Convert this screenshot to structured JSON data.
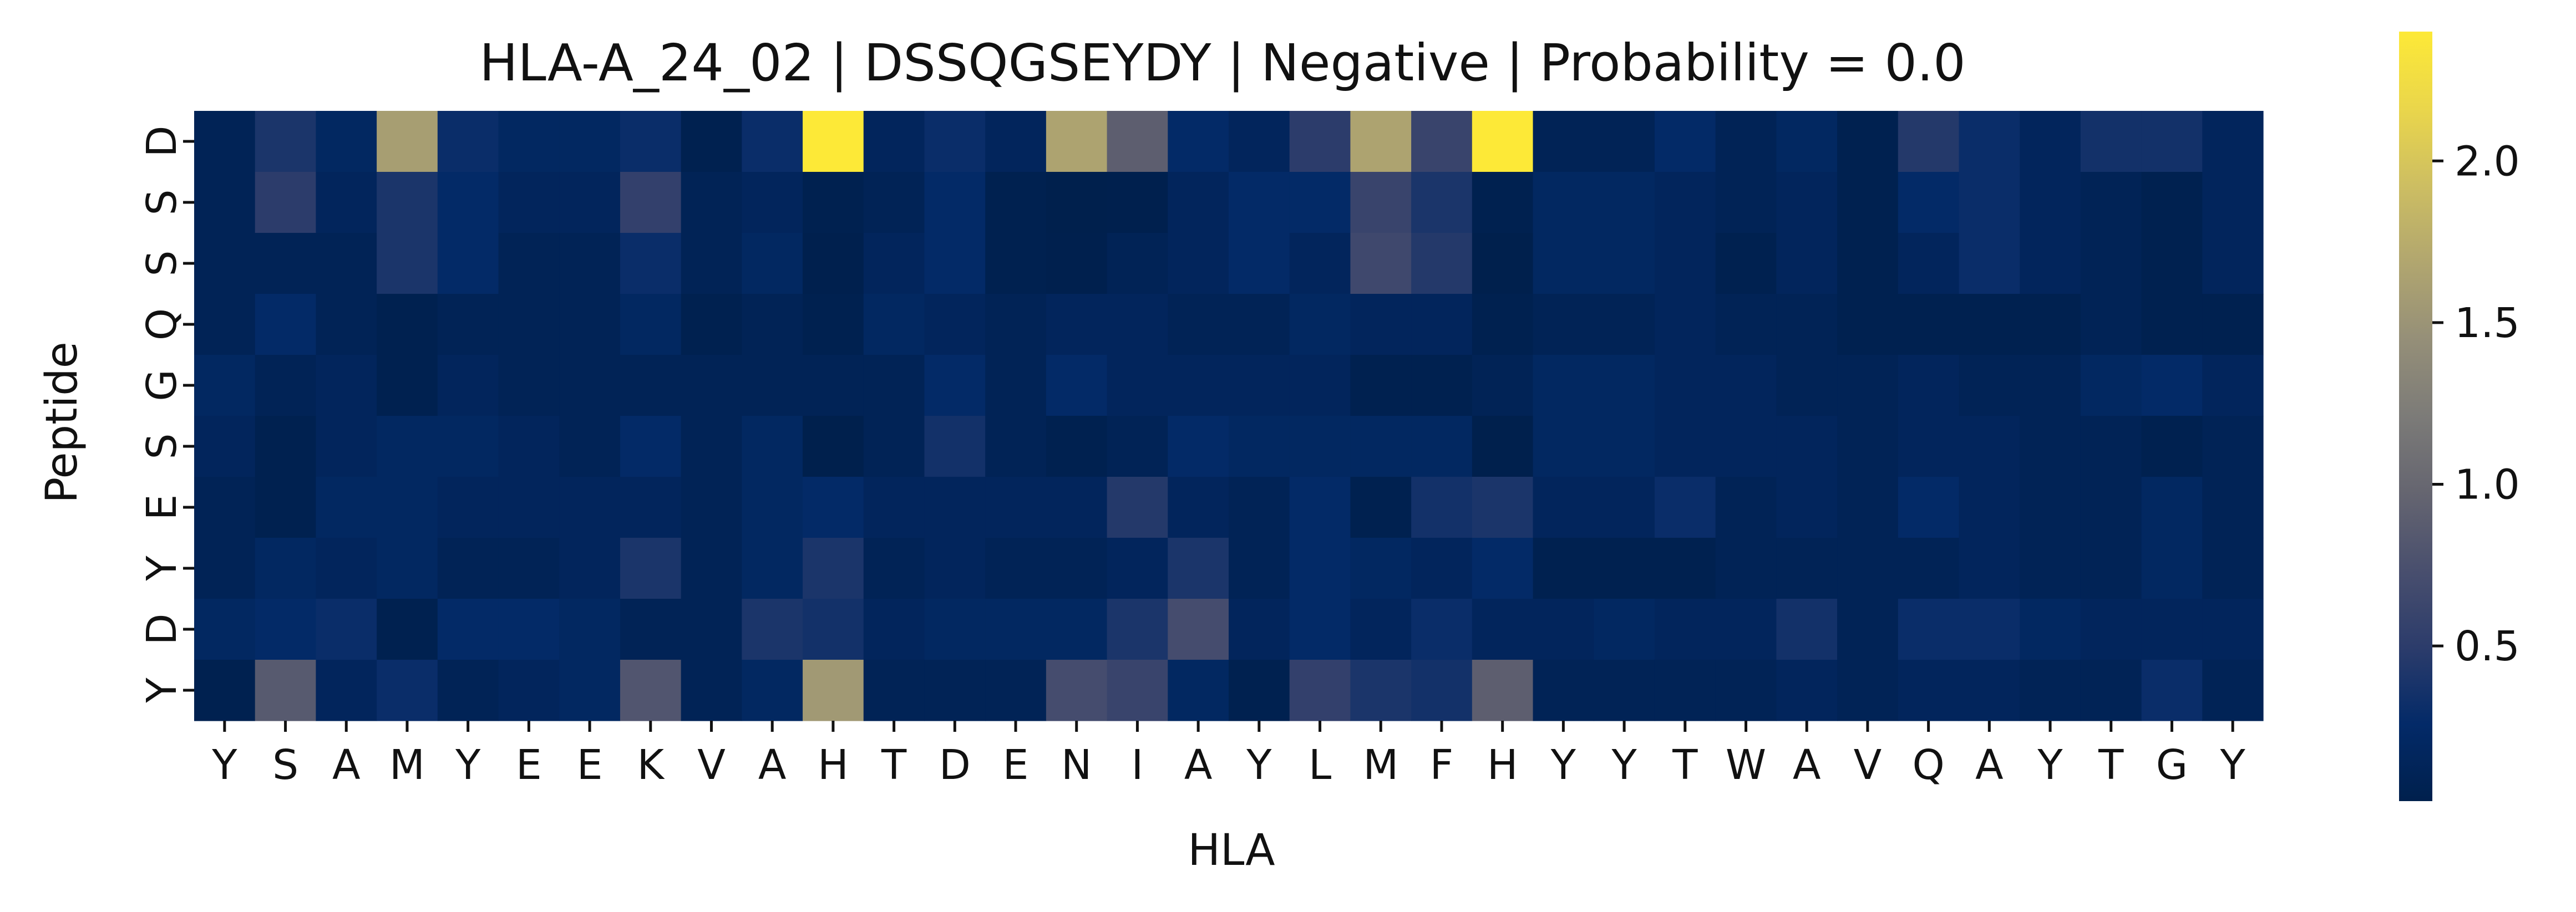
{
  "chart_data": {
    "type": "heatmap",
    "title": "HLA-A_24_02 | DSSQGSEYDY | Negative | Probability = 0.0",
    "xlabel": "HLA",
    "ylabel": "Peptide",
    "x_categories": [
      "Y",
      "S",
      "A",
      "M",
      "Y",
      "E",
      "E",
      "K",
      "V",
      "A",
      "H",
      "T",
      "D",
      "E",
      "N",
      "I",
      "A",
      "Y",
      "L",
      "M",
      "F",
      "H",
      "Y",
      "Y",
      "T",
      "W",
      "A",
      "V",
      "Q",
      "A",
      "Y",
      "T",
      "G",
      "Y"
    ],
    "y_categories": [
      "D",
      "S",
      "S",
      "Q",
      "G",
      "S",
      "E",
      "Y",
      "D",
      "Y"
    ],
    "values": [
      [
        0.1,
        0.4,
        0.2,
        1.6,
        0.3,
        0.2,
        0.2,
        0.3,
        0.05,
        0.3,
        2.4,
        0.15,
        0.3,
        0.15,
        1.65,
        0.9,
        0.25,
        0.15,
        0.5,
        1.65,
        0.6,
        2.4,
        0.1,
        0.1,
        0.25,
        0.1,
        0.2,
        0.05,
        0.45,
        0.3,
        0.15,
        0.35,
        0.35,
        0.15
      ],
      [
        0.1,
        0.5,
        0.15,
        0.4,
        0.25,
        0.15,
        0.15,
        0.55,
        0.1,
        0.15,
        0.05,
        0.1,
        0.25,
        0.05,
        0.02,
        0.03,
        0.15,
        0.25,
        0.25,
        0.6,
        0.4,
        0.05,
        0.2,
        0.2,
        0.15,
        0.1,
        0.15,
        0.05,
        0.25,
        0.3,
        0.15,
        0.1,
        0.05,
        0.15
      ],
      [
        0.1,
        0.1,
        0.1,
        0.4,
        0.25,
        0.1,
        0.1,
        0.3,
        0.1,
        0.2,
        0.03,
        0.15,
        0.25,
        0.05,
        0.03,
        0.1,
        0.15,
        0.25,
        0.15,
        0.65,
        0.45,
        0.02,
        0.2,
        0.2,
        0.15,
        0.05,
        0.15,
        0.05,
        0.15,
        0.3,
        0.15,
        0.1,
        0.05,
        0.15
      ],
      [
        0.1,
        0.25,
        0.1,
        0.05,
        0.1,
        0.1,
        0.1,
        0.2,
        0.05,
        0.1,
        0.05,
        0.2,
        0.15,
        0.1,
        0.15,
        0.15,
        0.1,
        0.1,
        0.2,
        0.15,
        0.15,
        0.05,
        0.1,
        0.1,
        0.15,
        0.1,
        0.1,
        0.05,
        0.05,
        0.05,
        0.05,
        0.1,
        0.05,
        0.05
      ],
      [
        0.2,
        0.1,
        0.15,
        0.05,
        0.15,
        0.1,
        0.1,
        0.1,
        0.1,
        0.1,
        0.1,
        0.1,
        0.25,
        0.1,
        0.25,
        0.15,
        0.15,
        0.15,
        0.15,
        0.05,
        0.05,
        0.1,
        0.2,
        0.2,
        0.15,
        0.15,
        0.1,
        0.1,
        0.15,
        0.1,
        0.1,
        0.2,
        0.25,
        0.15
      ],
      [
        0.15,
        0.05,
        0.15,
        0.2,
        0.2,
        0.15,
        0.1,
        0.25,
        0.1,
        0.2,
        0.02,
        0.1,
        0.35,
        0.1,
        0.05,
        0.1,
        0.25,
        0.2,
        0.2,
        0.2,
        0.2,
        0.02,
        0.2,
        0.2,
        0.15,
        0.15,
        0.15,
        0.1,
        0.15,
        0.15,
        0.1,
        0.1,
        0.05,
        0.1
      ],
      [
        0.1,
        0.05,
        0.2,
        0.2,
        0.15,
        0.15,
        0.15,
        0.15,
        0.1,
        0.2,
        0.25,
        0.15,
        0.15,
        0.15,
        0.15,
        0.45,
        0.15,
        0.1,
        0.25,
        0.05,
        0.35,
        0.4,
        0.15,
        0.15,
        0.3,
        0.1,
        0.15,
        0.1,
        0.25,
        0.15,
        0.1,
        0.1,
        0.2,
        0.1
      ],
      [
        0.1,
        0.2,
        0.15,
        0.2,
        0.1,
        0.1,
        0.15,
        0.4,
        0.1,
        0.2,
        0.4,
        0.1,
        0.15,
        0.1,
        0.1,
        0.15,
        0.4,
        0.1,
        0.25,
        0.2,
        0.15,
        0.25,
        0.05,
        0.05,
        0.05,
        0.1,
        0.1,
        0.1,
        0.1,
        0.15,
        0.1,
        0.1,
        0.2,
        0.1
      ],
      [
        0.2,
        0.25,
        0.3,
        0.05,
        0.25,
        0.25,
        0.2,
        0.1,
        0.1,
        0.4,
        0.35,
        0.15,
        0.2,
        0.2,
        0.2,
        0.4,
        0.7,
        0.15,
        0.25,
        0.15,
        0.3,
        0.15,
        0.15,
        0.2,
        0.15,
        0.15,
        0.35,
        0.1,
        0.3,
        0.3,
        0.2,
        0.15,
        0.15,
        0.15
      ],
      [
        0.05,
        0.85,
        0.15,
        0.3,
        0.1,
        0.15,
        0.2,
        0.8,
        0.1,
        0.2,
        1.55,
        0.1,
        0.1,
        0.1,
        0.7,
        0.6,
        0.2,
        0.05,
        0.55,
        0.4,
        0.35,
        0.9,
        0.1,
        0.1,
        0.1,
        0.1,
        0.15,
        0.1,
        0.15,
        0.15,
        0.1,
        0.1,
        0.3,
        0.1
      ]
    ],
    "colormap": "cividis",
    "colorbar_range": [
      0.02,
      2.4
    ],
    "colorbar_ticks": [
      0.5,
      1.0,
      1.5,
      2.0
    ],
    "colorbar_tick_labels": [
      "0.5",
      "1.0",
      "1.5",
      "2.0"
    ]
  }
}
